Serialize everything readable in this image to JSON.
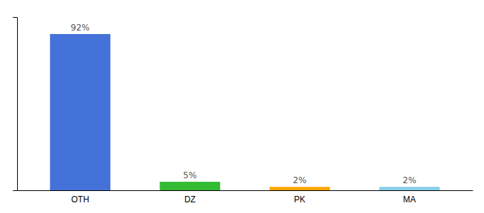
{
  "chart_data": {
    "type": "bar",
    "categories": [
      "OTH",
      "DZ",
      "PK",
      "MA"
    ],
    "values": [
      92,
      5,
      2,
      2
    ],
    "value_labels": [
      "92%",
      "5%",
      "2%",
      "2%"
    ],
    "data_labels": true,
    "colors": [
      "#4472D8",
      "#33BB33",
      "#FFA500",
      "#87CEEB"
    ],
    "ylim": [
      0,
      102
    ],
    "yticks": [],
    "tick_labels": "x",
    "grid": false
  }
}
